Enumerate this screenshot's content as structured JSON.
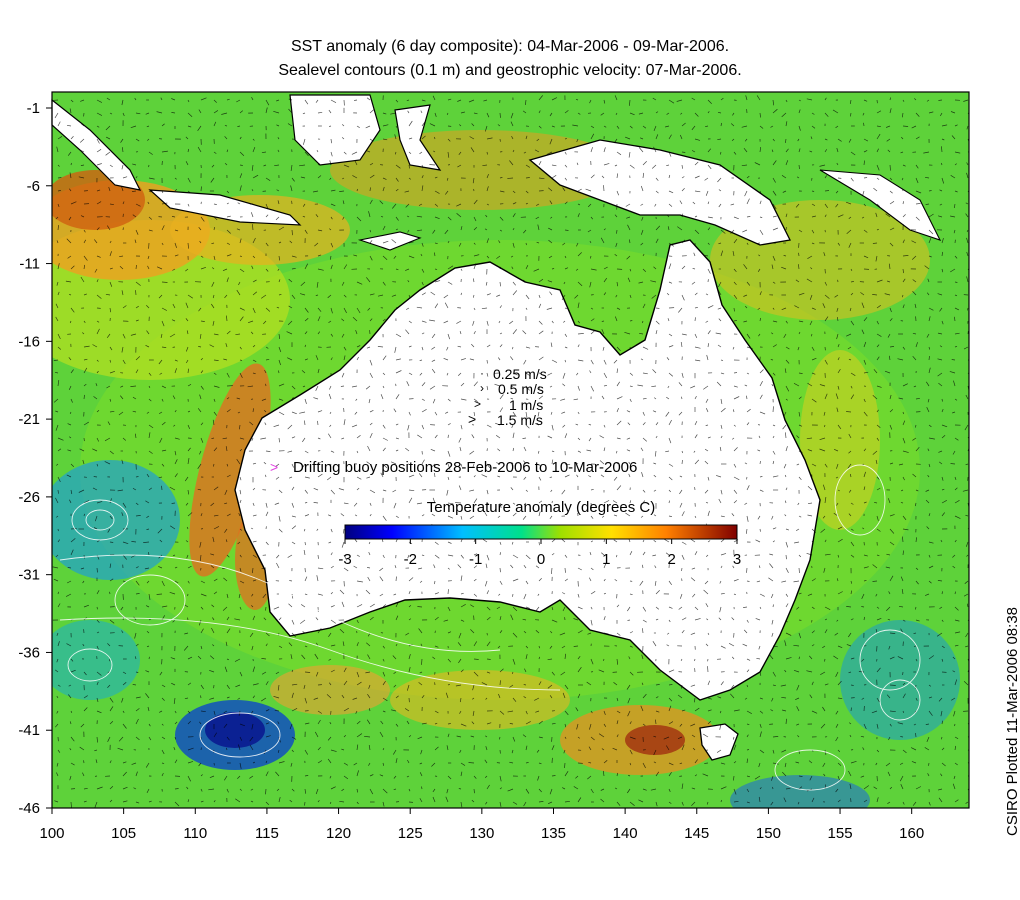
{
  "title_lines": [
    "SST anomaly (6 day composite): 04-Mar-2006 - 09-Mar-2006.",
    "Sealevel contours (0.1 m) and geostrophic velocity: 07-Mar-2006."
  ],
  "credit": "CSIRO Plotted 11-Mar-2006 08:38",
  "x_ticks": [
    "100",
    "105",
    "110",
    "115",
    "120",
    "125",
    "130",
    "135",
    "140",
    "145",
    "150",
    "155",
    "160"
  ],
  "y_ticks": [
    "-1",
    "-6",
    "-11",
    "-16",
    "-21",
    "-26",
    "-31",
    "-36",
    "-41",
    "-46"
  ],
  "velocity_legend": [
    "0.25 m/s",
    "0.5 m/s",
    "1 m/s",
    "1.5 m/s"
  ],
  "buoy_legend": "Drifting buoy positions 28-Feb-2006 to 10-Mar-2006",
  "colorbar": {
    "title": "Temperature anomaly (degrees C)",
    "ticks": [
      "-3",
      "-2",
      "-1",
      "0",
      "1",
      "2",
      "3"
    ],
    "range": [
      -3,
      3
    ]
  },
  "colors": {
    "buoy": "#e040e0",
    "cold": "#00008f",
    "warm": "#8f0000",
    "land": "#ffffff",
    "coast": "#000000",
    "contour": "#ffffff"
  }
}
